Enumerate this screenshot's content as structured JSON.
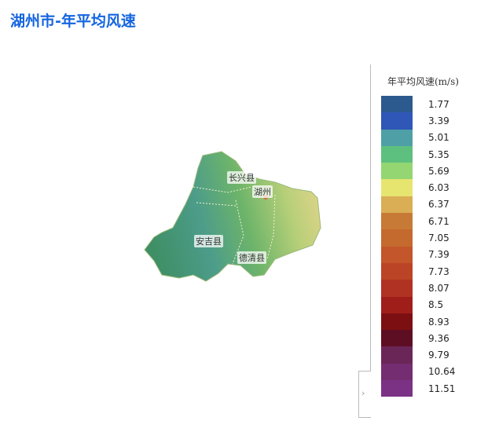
{
  "title": "湖州市-年平均风速",
  "map": {
    "labels": [
      "长兴县",
      "湖州",
      "安吉县",
      "德清县"
    ]
  },
  "legend": {
    "title": "年平均风速(m/s)",
    "items": [
      {
        "value": "1.77",
        "color": "#2d5a8e"
      },
      {
        "value": "3.39",
        "color": "#2f57b8"
      },
      {
        "value": "5.01",
        "color": "#4fa0a6"
      },
      {
        "value": "5.35",
        "color": "#5ec07e"
      },
      {
        "value": "5.69",
        "color": "#94d672"
      },
      {
        "value": "6.03",
        "color": "#e6e570"
      },
      {
        "value": "6.37",
        "color": "#d9ae55"
      },
      {
        "value": "6.71",
        "color": "#c77a35"
      },
      {
        "value": "7.05",
        "color": "#c46a2e"
      },
      {
        "value": "7.39",
        "color": "#c3562a"
      },
      {
        "value": "7.73",
        "color": "#bb4426"
      },
      {
        "value": "8.07",
        "color": "#b03222"
      },
      {
        "value": "8.5",
        "color": "#a01e1a"
      },
      {
        "value": "8.93",
        "color": "#7c0f12"
      },
      {
        "value": "9.36",
        "color": "#5e0e22"
      },
      {
        "value": "9.79",
        "color": "#6b2658"
      },
      {
        "value": "10.64",
        "color": "#742d70"
      },
      {
        "value": "11.51",
        "color": "#7b3285"
      }
    ]
  }
}
